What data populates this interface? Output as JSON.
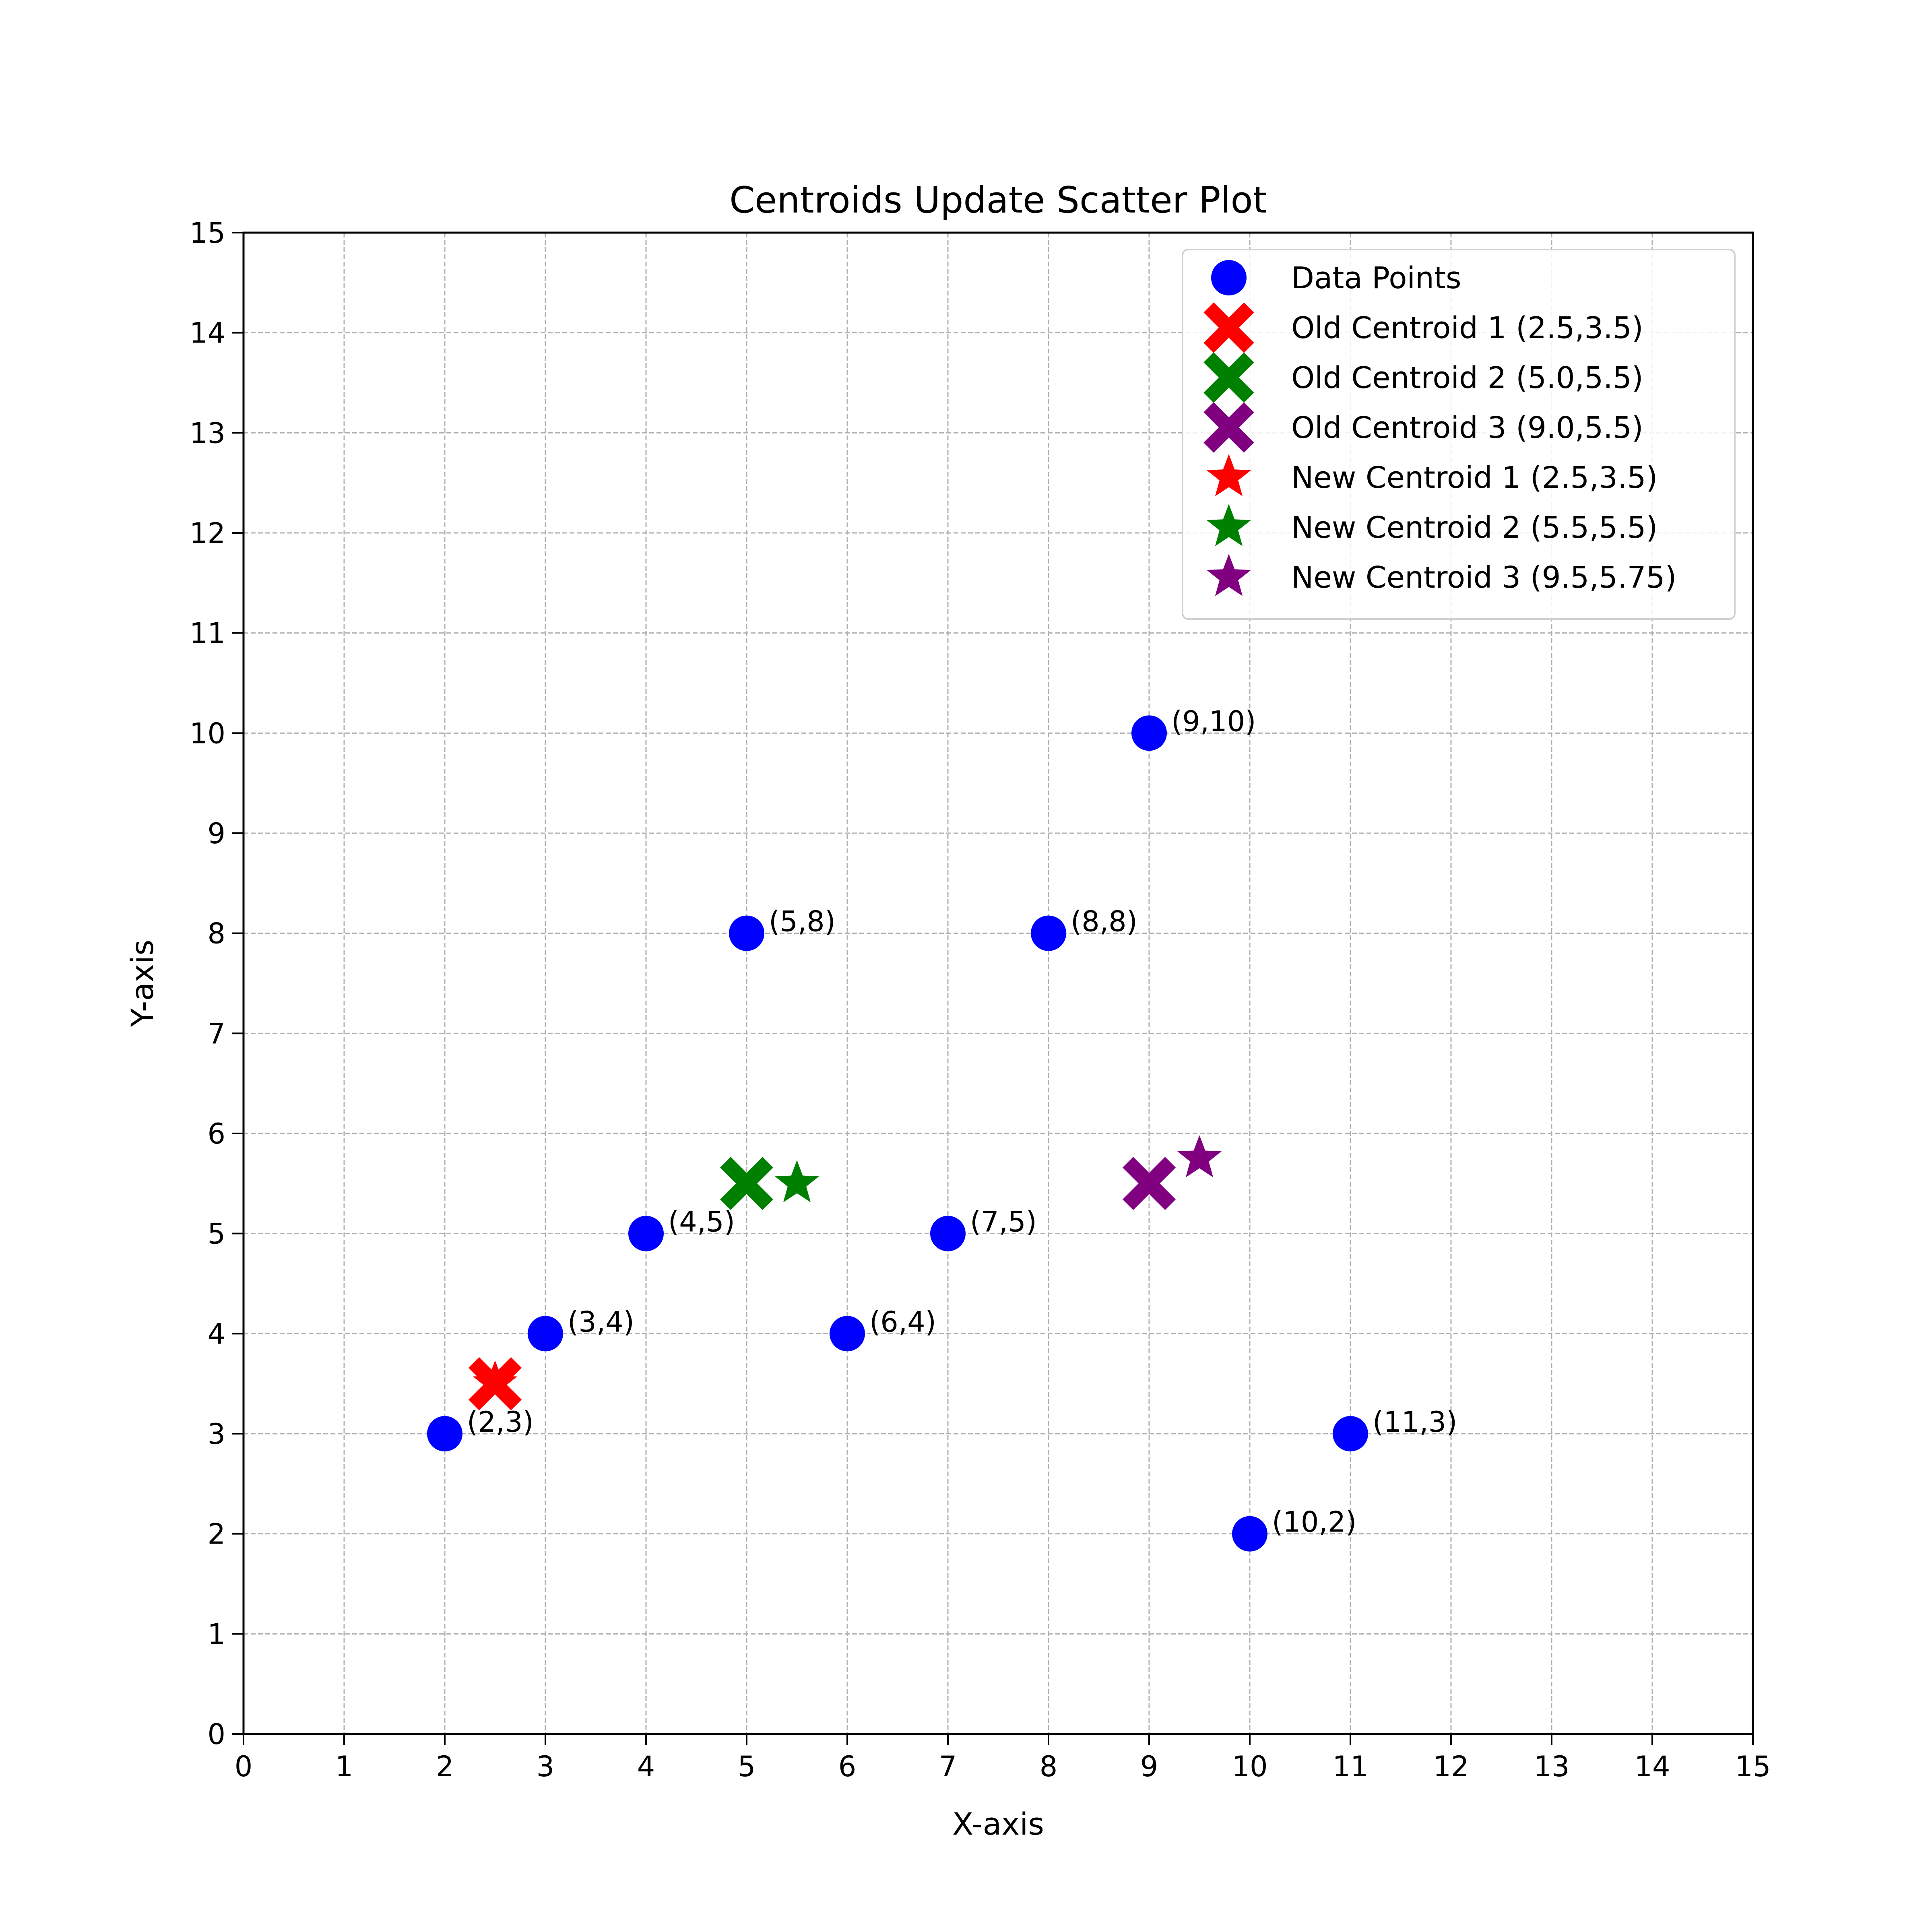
{
  "chart_data": {
    "type": "scatter",
    "title": "Centroids Update Scatter Plot",
    "xlabel": "X-axis",
    "ylabel": "Y-axis",
    "xlim": [
      0,
      15
    ],
    "ylim": [
      0,
      15
    ],
    "xticks": [
      "0",
      "1",
      "2",
      "3",
      "4",
      "5",
      "6",
      "7",
      "8",
      "9",
      "10",
      "11",
      "12",
      "13",
      "14",
      "15"
    ],
    "yticks": [
      "0",
      "1",
      "2",
      "3",
      "4",
      "5",
      "6",
      "7",
      "8",
      "9",
      "10",
      "11",
      "12",
      "13",
      "14",
      "15"
    ],
    "grid": true,
    "legend_position": "top-right",
    "series": [
      {
        "name": "Data Points",
        "marker": "circle",
        "color": "#0000ff",
        "points": [
          {
            "x": 2,
            "y": 3,
            "label": "(2,3)"
          },
          {
            "x": 3,
            "y": 4,
            "label": "(3,4)"
          },
          {
            "x": 4,
            "y": 5,
            "label": "(4,5)"
          },
          {
            "x": 5,
            "y": 8,
            "label": "(5,8)"
          },
          {
            "x": 6,
            "y": 4,
            "label": "(6,4)"
          },
          {
            "x": 7,
            "y": 5,
            "label": "(7,5)"
          },
          {
            "x": 8,
            "y": 8,
            "label": "(8,8)"
          },
          {
            "x": 9,
            "y": 10,
            "label": "(9,10)"
          },
          {
            "x": 10,
            "y": 2,
            "label": "(10,2)"
          },
          {
            "x": 11,
            "y": 3,
            "label": "(11,3)"
          }
        ]
      },
      {
        "name": "Old Centroid 1 (2.5,3.5)",
        "marker": "x",
        "color": "#ff0000",
        "points": [
          {
            "x": 2.5,
            "y": 3.5
          }
        ]
      },
      {
        "name": "Old Centroid 2 (5.0,5.5)",
        "marker": "x",
        "color": "#008000",
        "points": [
          {
            "x": 5.0,
            "y": 5.5
          }
        ]
      },
      {
        "name": "Old Centroid 3 (9.0,5.5)",
        "marker": "x",
        "color": "#800080",
        "points": [
          {
            "x": 9.0,
            "y": 5.5
          }
        ]
      },
      {
        "name": "New Centroid 1 (2.5,3.5)",
        "marker": "star",
        "color": "#ff0000",
        "points": [
          {
            "x": 2.5,
            "y": 3.5
          }
        ]
      },
      {
        "name": "New Centroid 2 (5.5,5.5)",
        "marker": "star",
        "color": "#008000",
        "points": [
          {
            "x": 5.5,
            "y": 5.5
          }
        ]
      },
      {
        "name": "New Centroid 3 (9.5,5.75)",
        "marker": "star",
        "color": "#800080",
        "points": [
          {
            "x": 9.5,
            "y": 5.75
          }
        ]
      }
    ]
  }
}
